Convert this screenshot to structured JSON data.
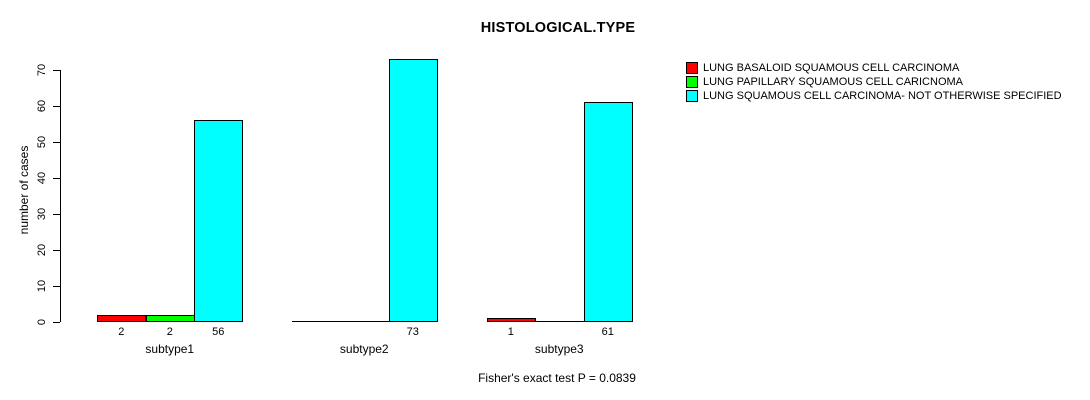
{
  "chart": {
    "title": "HISTOLOGICAL.TYPE",
    "ylabel": "number of cases",
    "footnote": "Fisher's exact test P = 0.0839"
  },
  "chart_data": {
    "type": "bar",
    "grouped": true,
    "title": "HISTOLOGICAL.TYPE",
    "xlabel": "",
    "ylabel": "number of cases",
    "categories": [
      "subtype1",
      "subtype2",
      "subtype3"
    ],
    "series": [
      {
        "name": "LUNG BASALOID SQUAMOUS CELL CARCINOMA",
        "color": "#ff0000",
        "values": [
          2,
          0,
          1
        ]
      },
      {
        "name": "LUNG PAPILLARY SQUAMOUS CELL CARICNOMA",
        "color": "#00ff00",
        "values": [
          2,
          0,
          0
        ]
      },
      {
        "name": "LUNG SQUAMOUS CELL CARCINOMA- NOT OTHERWISE SPECIFIED",
        "color": "#00ffff",
        "values": [
          56,
          73,
          61
        ]
      }
    ],
    "bar_value_labels": [
      [
        "2",
        "",
        "1"
      ],
      [
        "2",
        "",
        ""
      ],
      [
        "56",
        "73",
        "61"
      ]
    ],
    "y_ticks": [
      0,
      10,
      20,
      30,
      40,
      50,
      60,
      70
    ],
    "ylim": [
      0,
      73
    ],
    "grid": false,
    "legend_position": "top-right-outside",
    "legend_clipped_at_right_edge": true,
    "annotation": "Fisher's exact test P = 0.0839",
    "bar_border_color": "#000000",
    "axis_color": "#000000"
  }
}
